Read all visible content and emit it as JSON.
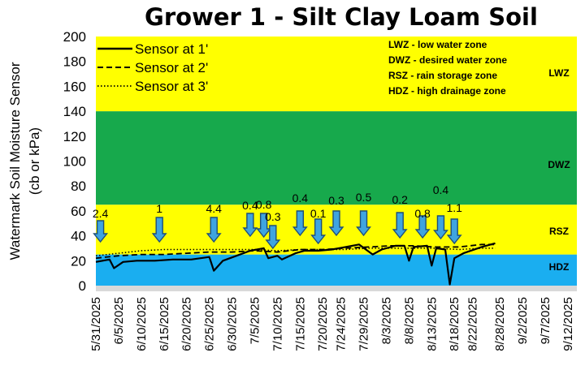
{
  "chart_data": {
    "type": "line",
    "title": "Grower 1 - Silt Clay Loam Soil",
    "ylabel_lines": [
      "Watermark Soil Moisture Sensor",
      "(cb or kPa)"
    ],
    "xlabel": "",
    "ylim": [
      0,
      200
    ],
    "yticks": [
      0,
      20,
      40,
      60,
      80,
      100,
      120,
      140,
      160,
      180,
      200
    ],
    "xlim": [
      "2025-05-31",
      "2025-09-14"
    ],
    "xticks": [
      "2025-05-31",
      "2025-06-05",
      "2025-06-10",
      "2025-06-15",
      "2025-06-20",
      "2025-06-25",
      "2025-06-30",
      "2025-07-05",
      "2025-07-10",
      "2025-07-15",
      "2025-07-20",
      "2025-07-24",
      "2025-07-29",
      "2025-08-03",
      "2025-08-08",
      "2025-08-13",
      "2025-08-18",
      "2025-08-22",
      "2025-08-28",
      "2025-09-02",
      "2025-09-07",
      "2025-09-12"
    ],
    "xtick_labels": [
      "5/31/2025",
      "6/5/2025",
      "6/10/2025",
      "6/15/2025",
      "6/20/2025",
      "6/25/2025",
      "6/30/2025",
      "7/5/2025",
      "7/10/2025",
      "7/15/2025",
      "7/20/2025",
      "7/24/2025",
      "7/29/2025",
      "8/3/2025",
      "8/8/2025",
      "8/13/2025",
      "8/18/2025",
      "8/22/2025",
      "8/28/2025",
      "9/2/2025",
      "9/7/2025",
      "9/12/2025"
    ],
    "legend_position": "top-left",
    "zones": [
      {
        "tag": "HDZ",
        "from": 0,
        "to": 25,
        "color": "#1aaef0"
      },
      {
        "tag": "RSZ",
        "from": 25,
        "to": 65,
        "color": "#ffff00"
      },
      {
        "tag": "DWZ",
        "from": 65,
        "to": 140,
        "color": "#17a94c"
      },
      {
        "tag": "LWZ",
        "from": 140,
        "to": 200,
        "color": "#ffff00"
      }
    ],
    "zone_definitions": [
      "LWZ  - low water zone",
      "DWZ  - desired water zone",
      "RSZ  - rain storage zone",
      "HDZ  - high drainage zone"
    ],
    "rain_events": [
      {
        "date": "2025-06-01",
        "label": "2.4"
      },
      {
        "date": "2025-06-14",
        "label": "1"
      },
      {
        "date": "2025-06-26",
        "label": "4.4"
      },
      {
        "date": "2025-07-04",
        "label": "0.4"
      },
      {
        "date": "2025-07-07",
        "label": "0.8"
      },
      {
        "date": "2025-07-09",
        "label": "0.3"
      },
      {
        "date": "2025-07-15",
        "label": "0.4"
      },
      {
        "date": "2025-07-19",
        "label": "0.1"
      },
      {
        "date": "2025-07-23",
        "label": "0.3"
      },
      {
        "date": "2025-07-29",
        "label": "0.5"
      },
      {
        "date": "2025-08-06",
        "label": "0.2"
      },
      {
        "date": "2025-08-11",
        "label": "0.8"
      },
      {
        "date": "2025-08-15",
        "label": "0.4"
      },
      {
        "date": "2025-08-18",
        "label": "1.1"
      }
    ],
    "series": [
      {
        "name": "Sensor at 1'",
        "style": "solid",
        "points": [
          [
            "2025-05-31",
            19
          ],
          [
            "2025-06-03",
            21
          ],
          [
            "2025-06-04",
            14
          ],
          [
            "2025-06-06",
            19
          ],
          [
            "2025-06-09",
            20
          ],
          [
            "2025-06-13",
            20
          ],
          [
            "2025-06-17",
            21
          ],
          [
            "2025-06-21",
            21
          ],
          [
            "2025-06-25",
            23
          ],
          [
            "2025-06-26",
            12
          ],
          [
            "2025-06-28",
            20
          ],
          [
            "2025-07-01",
            24
          ],
          [
            "2025-07-04",
            28
          ],
          [
            "2025-07-07",
            30
          ],
          [
            "2025-07-08",
            22
          ],
          [
            "2025-07-10",
            24
          ],
          [
            "2025-07-11",
            21
          ],
          [
            "2025-07-14",
            26
          ],
          [
            "2025-07-16",
            28
          ],
          [
            "2025-07-19",
            28
          ],
          [
            "2025-07-22",
            29
          ],
          [
            "2025-07-25",
            31
          ],
          [
            "2025-07-28",
            33
          ],
          [
            "2025-07-31",
            25
          ],
          [
            "2025-08-02",
            29
          ],
          [
            "2025-08-05",
            32
          ],
          [
            "2025-08-07",
            32
          ],
          [
            "2025-08-08",
            20
          ],
          [
            "2025-08-09",
            31
          ],
          [
            "2025-08-12",
            32
          ],
          [
            "2025-08-13",
            16
          ],
          [
            "2025-08-14",
            30
          ],
          [
            "2025-08-16",
            29
          ],
          [
            "2025-08-17",
            1
          ],
          [
            "2025-08-18",
            22
          ],
          [
            "2025-08-20",
            26
          ],
          [
            "2025-08-24",
            31
          ],
          [
            "2025-08-27",
            34
          ]
        ]
      },
      {
        "name": "Sensor at 2'",
        "style": "dashed",
        "points": [
          [
            "2025-05-31",
            22
          ],
          [
            "2025-06-05",
            24
          ],
          [
            "2025-06-10",
            25
          ],
          [
            "2025-06-15",
            25
          ],
          [
            "2025-06-20",
            26
          ],
          [
            "2025-06-25",
            27
          ],
          [
            "2025-06-30",
            27
          ],
          [
            "2025-07-05",
            28
          ],
          [
            "2025-07-10",
            27
          ],
          [
            "2025-07-15",
            29
          ],
          [
            "2025-07-20",
            29
          ],
          [
            "2025-07-25",
            30
          ],
          [
            "2025-07-30",
            31
          ],
          [
            "2025-08-04",
            32
          ],
          [
            "2025-08-09",
            32
          ],
          [
            "2025-08-14",
            31
          ],
          [
            "2025-08-19",
            31
          ],
          [
            "2025-08-24",
            33
          ],
          [
            "2025-08-27",
            33
          ]
        ]
      },
      {
        "name": "Sensor at 3'",
        "style": "dotted",
        "points": [
          [
            "2025-05-31",
            24
          ],
          [
            "2025-06-05",
            26
          ],
          [
            "2025-06-10",
            28
          ],
          [
            "2025-06-15",
            29
          ],
          [
            "2025-06-20",
            29
          ],
          [
            "2025-06-25",
            29
          ],
          [
            "2025-06-30",
            29
          ],
          [
            "2025-07-05",
            29
          ],
          [
            "2025-07-10",
            28
          ],
          [
            "2025-07-15",
            29
          ],
          [
            "2025-07-20",
            29
          ],
          [
            "2025-07-25",
            29
          ],
          [
            "2025-07-30",
            30
          ],
          [
            "2025-08-04",
            30
          ],
          [
            "2025-08-09",
            30
          ],
          [
            "2025-08-14",
            30
          ],
          [
            "2025-08-19",
            29
          ],
          [
            "2025-08-24",
            30
          ],
          [
            "2025-08-27",
            30
          ]
        ]
      }
    ]
  }
}
